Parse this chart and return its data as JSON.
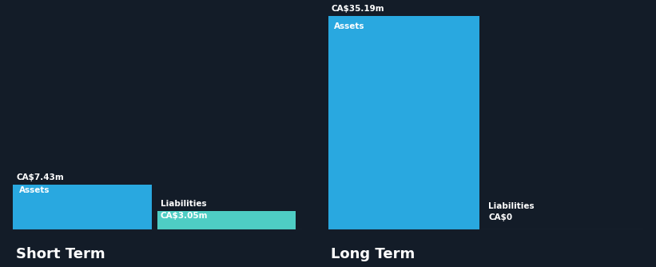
{
  "background_color": "#131c28",
  "text_color": "#ffffff",
  "short_term": {
    "assets_value": 7.43,
    "liabilities_value": 3.05,
    "assets_label": "Assets",
    "assets_value_label": "CA$7.43m",
    "liabilities_label": "Liabilities",
    "liabilities_value_label": "CA$3.05m",
    "assets_color": "#29a8e0",
    "liabilities_color": "#4ecdc4",
    "section_label": "Short Term"
  },
  "long_term": {
    "assets_value": 35.19,
    "liabilities_value": 0,
    "assets_label": "Assets",
    "assets_value_label": "CA$35.19m",
    "liabilities_label": "Liabilities",
    "liabilities_value_label": "CA$0",
    "assets_color": "#29a8e0",
    "liabilities_color": "#29a8e0",
    "section_label": "Long Term"
  },
  "max_value": 35.19,
  "baseline_color": "#4a5568",
  "label_fontsize": 7.5,
  "section_fontsize": 13
}
